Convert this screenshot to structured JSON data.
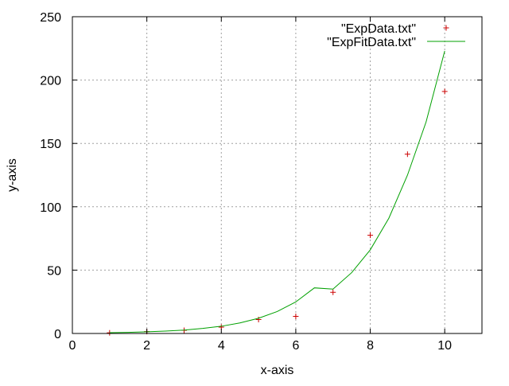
{
  "chart_data": {
    "type": "scatter",
    "title": "",
    "xlabel": "x-axis",
    "ylabel": "y-axis",
    "xlim": [
      0,
      11
    ],
    "ylim": [
      0,
      250
    ],
    "xticks": [
      0,
      2,
      4,
      6,
      8,
      10
    ],
    "yticks": [
      0,
      50,
      100,
      150,
      200,
      250
    ],
    "grid": true,
    "legend_position": "top-right",
    "series": [
      {
        "name": "\"ExpData.txt\"",
        "kind": "points",
        "marker": "plus",
        "color": "#cc0000",
        "x": [
          1,
          2,
          3,
          4,
          5,
          6,
          7,
          8,
          9,
          10
        ],
        "y": [
          0.5,
          1.5,
          2.5,
          5,
          11,
          13.5,
          32.5,
          77.5,
          141.5,
          191
        ]
      },
      {
        "name": "\"ExpFitData.txt\"",
        "kind": "line",
        "color": "#00a000",
        "x": [
          1,
          1.5,
          2,
          2.5,
          3,
          3.5,
          4,
          4.5,
          5,
          5.5,
          6,
          6.5,
          7,
          7.5,
          8,
          8.5,
          9,
          9.5,
          10
        ],
        "y": [
          0.6,
          0.9,
          1.3,
          1.9,
          2.7,
          4.0,
          5.7,
          8.3,
          12.0,
          17.3,
          24.9,
          36.0,
          35.0,
          48.0,
          66.0,
          91.0,
          125.0,
          167.0,
          223.0
        ]
      }
    ]
  }
}
